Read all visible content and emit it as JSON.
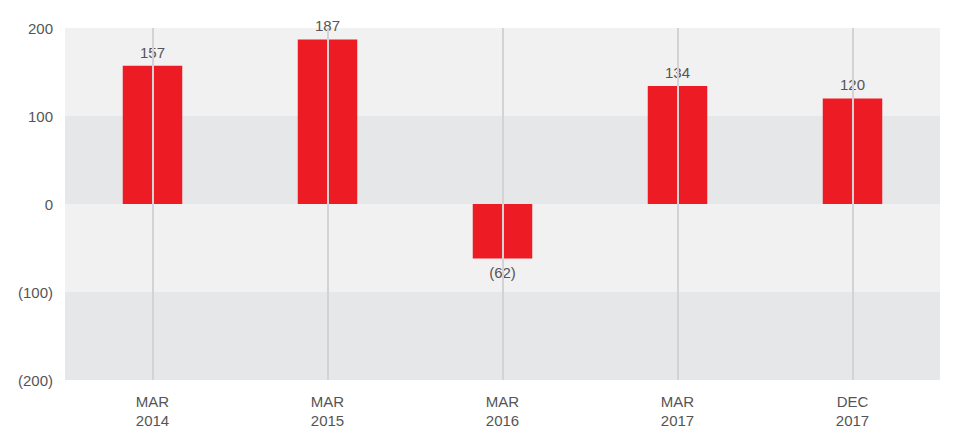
{
  "chart_data": {
    "type": "bar",
    "categories": [
      "MAR\n2014",
      "MAR\n2015",
      "MAR\n2016",
      "MAR\n2017",
      "DEC\n2017"
    ],
    "values": [
      157,
      187,
      -62,
      134,
      120
    ],
    "value_labels": [
      "157",
      "187",
      "(62)",
      "134",
      "120"
    ],
    "color": "#ed1c24",
    "ylim": [
      -200,
      200
    ],
    "yticks": [
      {
        "value": -200,
        "label": "(200)"
      },
      {
        "value": -100,
        "label": "(100)"
      },
      0,
      100,
      200
    ],
    "grid": true,
    "data_labels": true
  }
}
